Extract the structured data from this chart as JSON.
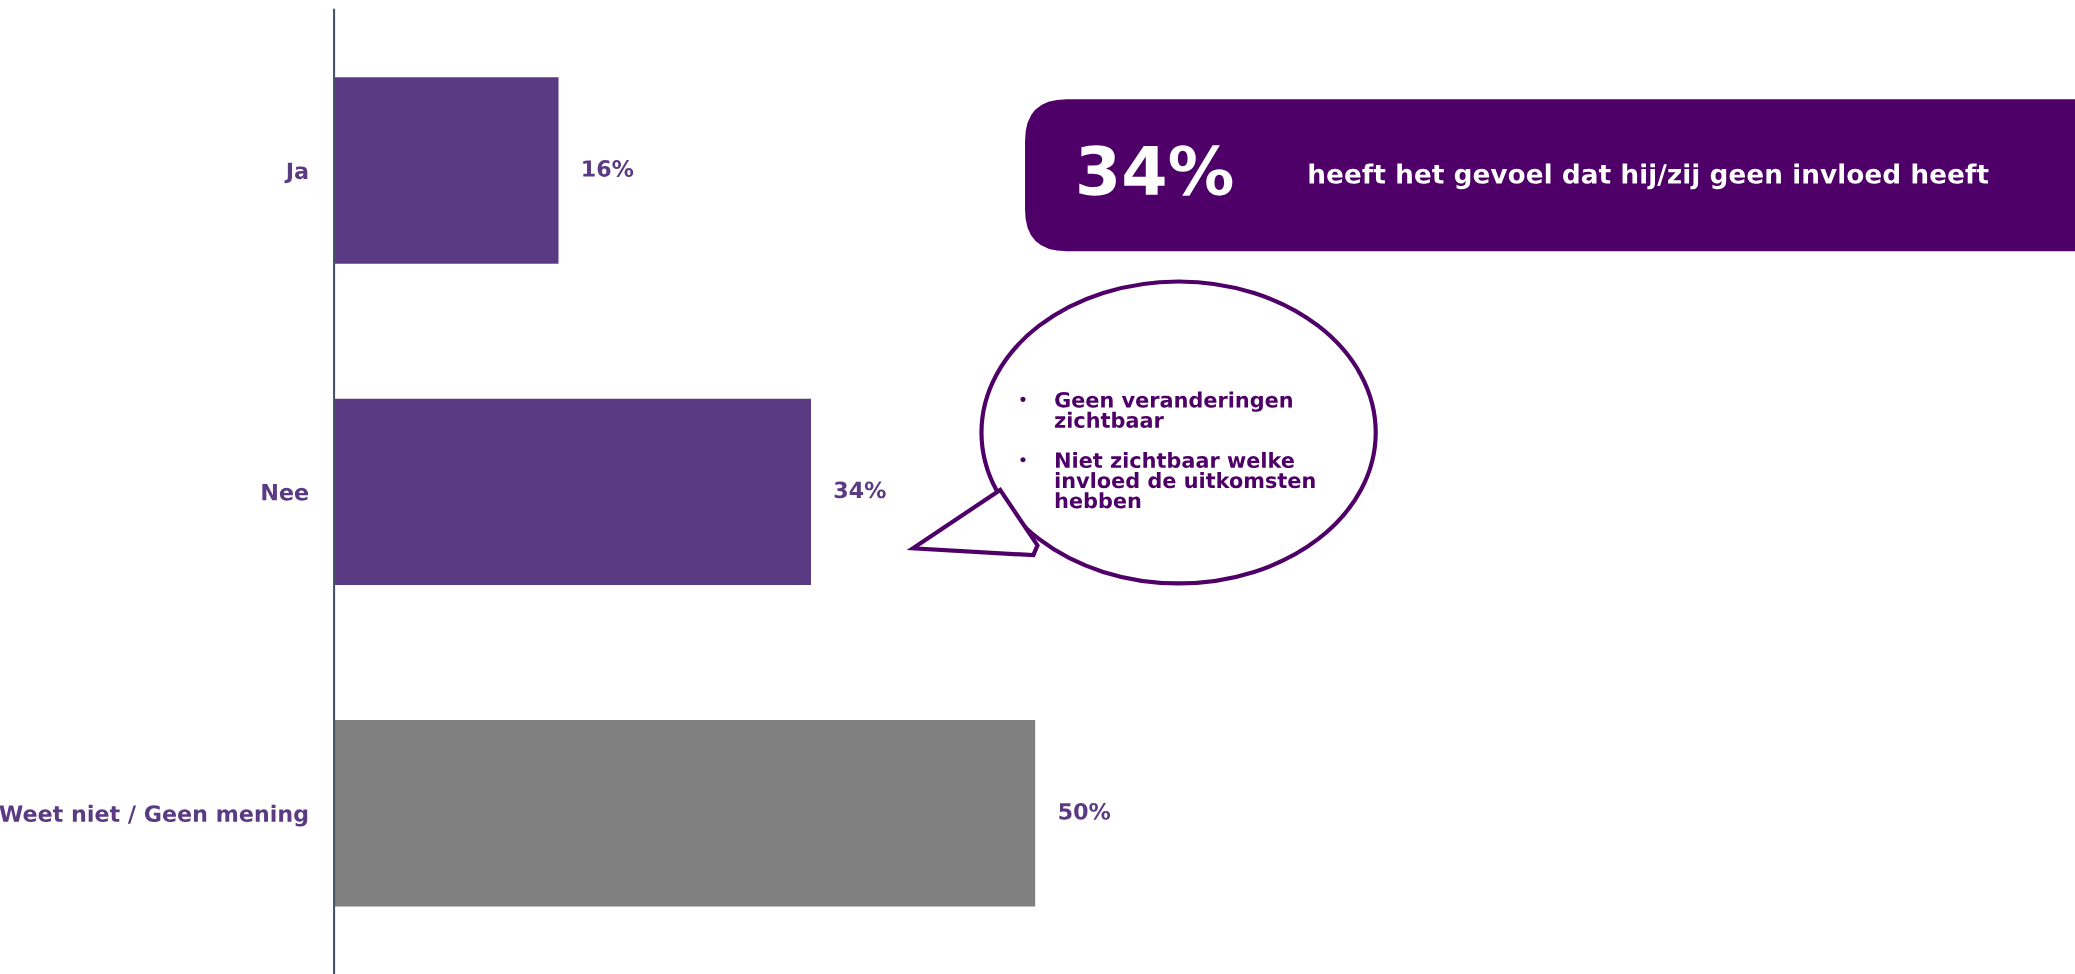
{
  "chart_data": {
    "type": "bar",
    "orientation": "horizontal",
    "categories": [
      "Ja",
      "Nee",
      "Weet niet / Geen mening"
    ],
    "values": [
      16,
      34,
      50
    ],
    "colors": [
      "#5b3a84",
      "#5b3a84",
      "#808080"
    ],
    "value_labels": [
      "16%",
      "34%",
      "50%"
    ],
    "annotations": [
      "34%",
      "heeft het gevoel dat hij/zij geen invloed heeft",
      "Geen veranderingen\nzichtbaar",
      "Niet zichtbaar welke\ninvloed de uitkomsten\nhebben"
    ]
  }
}
